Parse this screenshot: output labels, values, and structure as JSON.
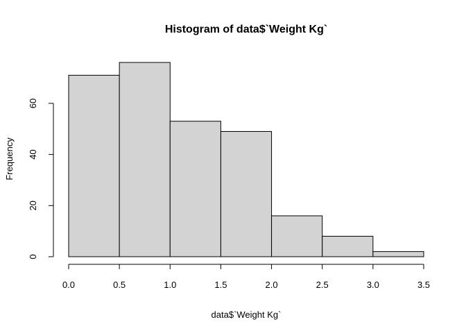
{
  "chart_data": {
    "type": "bar",
    "title": "Histogram of data$`Weight Kg`",
    "xlabel": "data$`Weight Kg`",
    "ylabel": "Frequency",
    "bins": [
      {
        "start": 0.0,
        "end": 0.5,
        "count": 71
      },
      {
        "start": 0.5,
        "end": 1.0,
        "count": 76
      },
      {
        "start": 1.0,
        "end": 1.5,
        "count": 53
      },
      {
        "start": 1.5,
        "end": 2.0,
        "count": 49
      },
      {
        "start": 2.0,
        "end": 2.5,
        "count": 16
      },
      {
        "start": 2.5,
        "end": 3.0,
        "count": 8
      },
      {
        "start": 3.0,
        "end": 3.5,
        "count": 2
      }
    ],
    "x_ticks": [
      "0.0",
      "0.5",
      "1.0",
      "1.5",
      "2.0",
      "2.5",
      "3.0",
      "3.5"
    ],
    "x_tick_values": [
      0.0,
      0.5,
      1.0,
      1.5,
      2.0,
      2.5,
      3.0,
      3.5
    ],
    "y_ticks": [
      "0",
      "20",
      "40",
      "60"
    ],
    "y_tick_values": [
      0,
      20,
      40,
      60
    ],
    "xlim": [
      0.0,
      3.5
    ],
    "ylim": [
      0,
      76
    ],
    "bar_color": "#d3d3d3",
    "grid": false
  }
}
